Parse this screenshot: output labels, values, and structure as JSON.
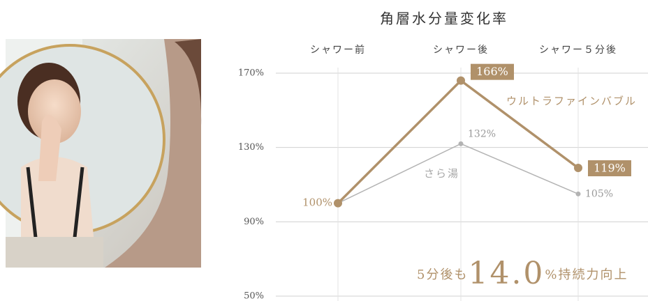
{
  "chart_data": {
    "type": "line",
    "title": "角層水分量変化率",
    "categories": [
      "シャワー前",
      "シャワー後",
      "シャワー５分後"
    ],
    "series": [
      {
        "name": "ウルトラファインバブル",
        "color": "#b0916a",
        "values": [
          100,
          166,
          119
        ],
        "value_labels": [
          "100%",
          "166%",
          "119%"
        ]
      },
      {
        "name": "さら湯",
        "color": "#b3b3b3",
        "values": [
          100,
          132,
          105
        ],
        "value_labels": [
          null,
          "132%",
          "105%"
        ]
      }
    ],
    "ylim": [
      50,
      170
    ],
    "yticks": [
      {
        "value": 50,
        "label": "50%"
      },
      {
        "value": 90,
        "label": "90%"
      },
      {
        "value": 130,
        "label": "130%"
      },
      {
        "value": 170,
        "label": "170%"
      }
    ],
    "grid": true,
    "annotation": {
      "prefix": "5分後も",
      "value": "14.0",
      "suffix": "%持続力向上"
    }
  }
}
